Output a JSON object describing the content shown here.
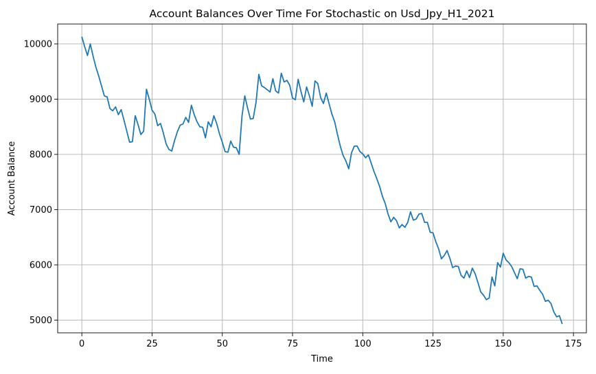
{
  "chart_data": {
    "type": "line",
    "title": "Account Balances Over Time For Stochastic on Usd_Jpy_H1_2021",
    "xlabel": "Time",
    "ylabel": "Account Balance",
    "xlim": [
      -8.6,
      179.6
    ],
    "ylim": [
      4770,
      10360
    ],
    "xticks": [
      0,
      25,
      50,
      75,
      100,
      125,
      150,
      175
    ],
    "yticks": [
      5000,
      6000,
      7000,
      8000,
      9000,
      10000
    ],
    "xtick_labels": [
      "0",
      "25",
      "50",
      "75",
      "100",
      "125",
      "150",
      "175"
    ],
    "ytick_labels": [
      "5000",
      "6000",
      "7000",
      "8000",
      "9000",
      "10000"
    ],
    "grid": true,
    "line_color": "#1f77b4",
    "series": [
      {
        "values": [
          10130,
          9950,
          9790,
          10000,
          9780,
          9580,
          9420,
          9240,
          9060,
          9040,
          8830,
          8790,
          8860,
          8720,
          8810,
          8620,
          8420,
          8220,
          8230,
          8700,
          8540,
          8360,
          8420,
          9180,
          9000,
          8800,
          8730,
          8520,
          8560,
          8390,
          8190,
          8090,
          8060,
          8250,
          8410,
          8530,
          8550,
          8670,
          8580,
          8890,
          8720,
          8590,
          8500,
          8490,
          8300,
          8590,
          8500,
          8700,
          8560,
          8370,
          8220,
          8050,
          8040,
          8240,
          8130,
          8120,
          8000,
          8690,
          9060,
          8840,
          8640,
          8650,
          8940,
          9450,
          9240,
          9210,
          9170,
          9130,
          9370,
          9150,
          9110,
          9470,
          9310,
          9340,
          9250,
          9020,
          8990,
          9360,
          9140,
          8950,
          9220,
          9060,
          8870,
          9330,
          9280,
          9030,
          8920,
          9110,
          8920,
          8730,
          8590,
          8360,
          8150,
          7980,
          7880,
          7740,
          8030,
          8150,
          8150,
          8050,
          8010,
          7940,
          7990,
          7840,
          7690,
          7560,
          7420,
          7240,
          7110,
          6920,
          6780,
          6860,
          6800,
          6670,
          6730,
          6680,
          6770,
          6960,
          6810,
          6830,
          6920,
          6930,
          6770,
          6770,
          6590,
          6580,
          6420,
          6290,
          6110,
          6170,
          6260,
          6120,
          5950,
          5980,
          5970,
          5810,
          5760,
          5890,
          5770,
          5940,
          5840,
          5680,
          5510,
          5450,
          5370,
          5400,
          5780,
          5620,
          6040,
          5960,
          6210,
          6090,
          6040,
          5970,
          5860,
          5750,
          5930,
          5920,
          5760,
          5790,
          5780,
          5610,
          5620,
          5540,
          5470,
          5340,
          5360,
          5300,
          5150,
          5060,
          5080,
          4930
        ]
      }
    ]
  }
}
